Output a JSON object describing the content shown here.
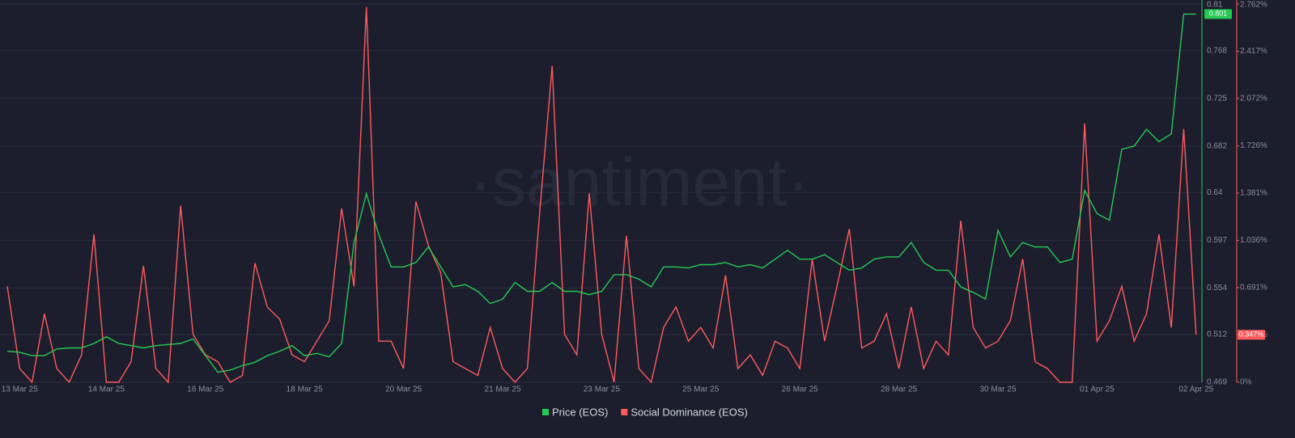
{
  "chart_data": {
    "type": "line",
    "watermark": "·santiment·",
    "categories": [
      null,
      "13 Mar 25",
      null,
      null,
      null,
      null,
      null,
      null,
      "14 Mar 25",
      null,
      null,
      null,
      null,
      null,
      null,
      null,
      "16 Mar 25",
      null,
      null,
      null,
      null,
      null,
      null,
      null,
      "18 Mar 25",
      null,
      null,
      null,
      null,
      null,
      null,
      null,
      "20 Mar 25",
      null,
      null,
      null,
      null,
      null,
      null,
      null,
      "21 Mar 25",
      null,
      null,
      null,
      null,
      null,
      null,
      null,
      "23 Mar 25",
      null,
      null,
      null,
      null,
      null,
      null,
      null,
      "25 Mar 25",
      null,
      null,
      null,
      null,
      null,
      null,
      null,
      "26 Mar 25",
      null,
      null,
      null,
      null,
      null,
      null,
      null,
      "28 Mar 25",
      null,
      null,
      null,
      null,
      null,
      null,
      null,
      "30 Mar 25",
      null,
      null,
      null,
      null,
      null,
      null,
      null,
      "01 Apr 25",
      null,
      null,
      null,
      null,
      null,
      null,
      null,
      "02 Apr 25"
    ],
    "series": [
      {
        "name": "Price (EOS)",
        "color": "#26c953",
        "axis": "y",
        "last_label": "0.801",
        "values": [
          0.497,
          0.496,
          0.493,
          0.493,
          0.499,
          0.5,
          0.5,
          0.504,
          0.51,
          0.504,
          0.502,
          0.5,
          0.502,
          0.503,
          0.504,
          0.508,
          0.493,
          0.478,
          0.48,
          0.484,
          0.487,
          0.493,
          0.497,
          0.502,
          0.493,
          0.495,
          0.492,
          0.504,
          0.595,
          0.639,
          0.602,
          0.573,
          0.573,
          0.577,
          0.591,
          0.573,
          0.555,
          0.557,
          0.551,
          0.54,
          0.544,
          0.559,
          0.551,
          0.551,
          0.559,
          0.551,
          0.551,
          0.548,
          0.551,
          0.566,
          0.566,
          0.562,
          0.555,
          0.573,
          0.573,
          0.572,
          0.575,
          0.575,
          0.577,
          0.573,
          0.575,
          0.572,
          0.58,
          0.588,
          0.58,
          0.58,
          0.584,
          0.577,
          0.57,
          0.572,
          0.58,
          0.582,
          0.582,
          0.595,
          0.577,
          0.57,
          0.57,
          0.555,
          0.55,
          0.544,
          0.606,
          0.582,
          0.595,
          0.591,
          0.591,
          0.577,
          0.58,
          0.642,
          0.621,
          0.615,
          0.679,
          0.682,
          0.697,
          0.686,
          0.693,
          0.801,
          0.801
        ]
      },
      {
        "name": "Social Dominance (EOS)",
        "color": "#ff5b5b",
        "axis": "y2",
        "last_label": "0.347%",
        "values": [
          0.7,
          0.1,
          0,
          0.5,
          0.1,
          0,
          0.2,
          1.08,
          0,
          0,
          0.15,
          0.85,
          0.1,
          0,
          1.29,
          0.35,
          0.2,
          0.15,
          0,
          0.05,
          0.87,
          0.55,
          0.46,
          0.2,
          0.15,
          0.3,
          0.45,
          1.27,
          0.7,
          2.74,
          0.3,
          0.3,
          0.1,
          1.32,
          1,
          0.8,
          0.15,
          0.1,
          0.05,
          0.4,
          0.1,
          0,
          0.1,
          1.25,
          2.31,
          0.35,
          0.2,
          1.38,
          0.35,
          0,
          1.07,
          0.1,
          0,
          0.4,
          0.55,
          0.3,
          0.4,
          0.25,
          0.78,
          0.1,
          0.2,
          0.05,
          0.3,
          0.25,
          0.1,
          0.9,
          0.3,
          0.7,
          1.12,
          0.25,
          0.3,
          0.5,
          0.1,
          0.55,
          0.1,
          0.3,
          0.2,
          1.18,
          0.4,
          0.25,
          0.3,
          0.45,
          0.9,
          0.15,
          0.1,
          0,
          0,
          1.89,
          0.3,
          0.45,
          0.7,
          0.3,
          0.5,
          1.08,
          0.4,
          1.85,
          0.347
        ]
      }
    ],
    "ylim": [
      0.469,
      0.81
    ],
    "yticks": [
      0.469,
      0.512,
      0.554,
      0.597,
      0.64,
      0.682,
      0.725,
      0.768,
      0.81
    ],
    "y2lim": [
      0,
      2.762
    ],
    "y2ticks": [
      {
        "value": 0,
        "label": "0%"
      },
      {
        "value": 0.347,
        "label": "0.347%"
      },
      {
        "value": 0.691,
        "label": "0.691%"
      },
      {
        "value": 1.036,
        "label": "1.036%"
      },
      {
        "value": 1.381,
        "label": "1.381%"
      },
      {
        "value": 1.726,
        "label": "1.726%"
      },
      {
        "value": 2.072,
        "label": "2.072%"
      },
      {
        "value": 2.417,
        "label": "2.417%"
      },
      {
        "value": 2.762,
        "label": "2.762%"
      }
    ],
    "grid": true,
    "legend": "bottom"
  }
}
